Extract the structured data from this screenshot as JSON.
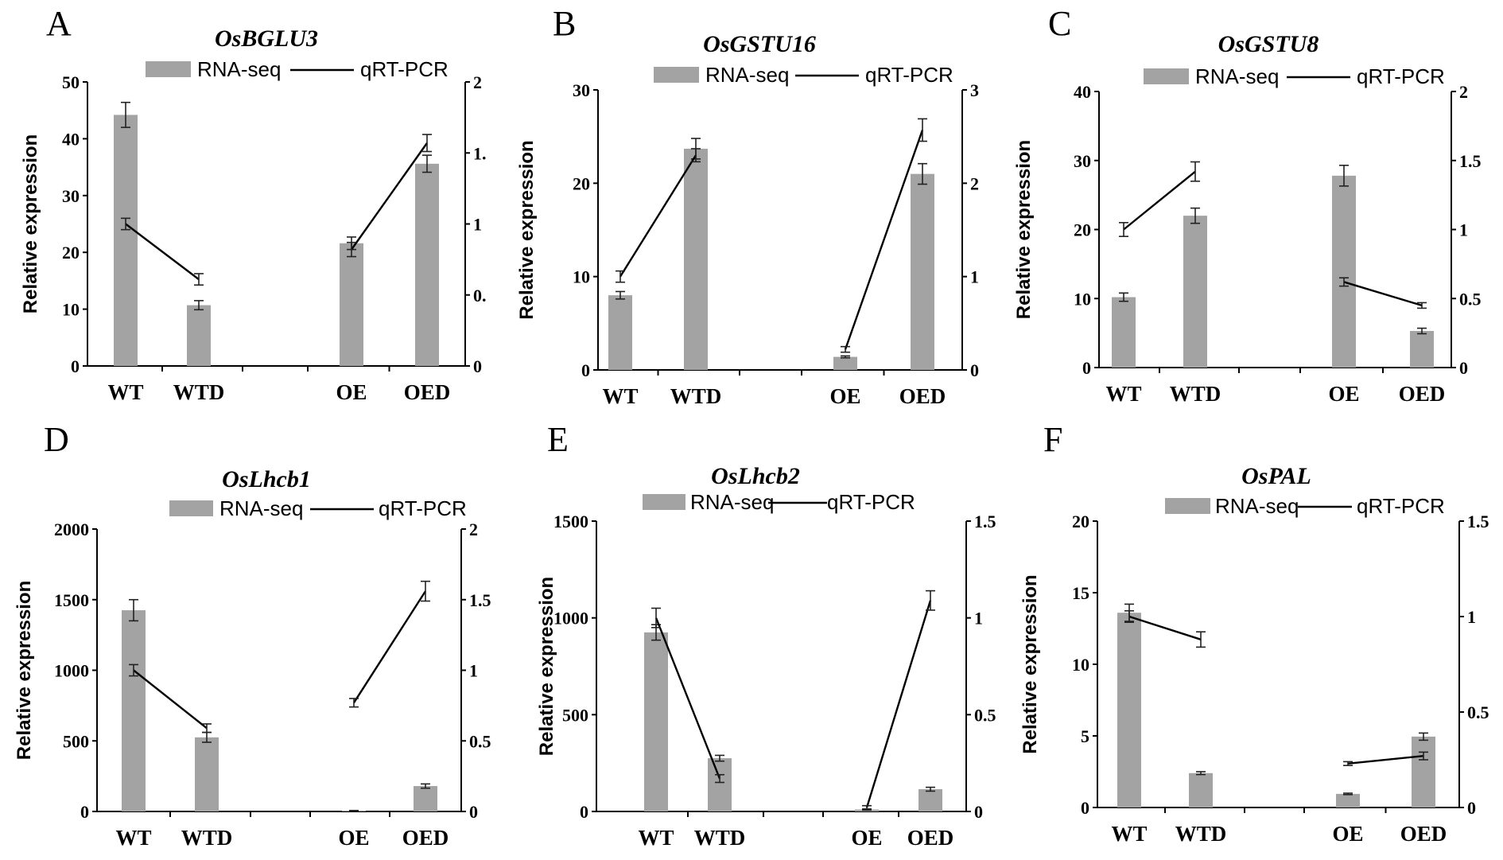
{
  "chart_data": [
    {
      "type": "bar",
      "panel": "A",
      "title": "OsBGLU3",
      "legend": [
        "RNA-seq",
        "qRT-PCR"
      ],
      "categories": [
        "WT",
        "WTD",
        "OE",
        "OED"
      ],
      "ylabel": "Relative expression",
      "ylim": [
        0,
        50
      ],
      "yticks": [
        "0",
        "10",
        "20",
        "30",
        "40",
        "50"
      ],
      "y2lim": [
        0,
        2
      ],
      "y2ticks": [
        "0",
        "0.",
        "1",
        "1.",
        "2"
      ],
      "series": [
        {
          "name": "RNA-seq",
          "type": "bar",
          "axis": "left",
          "values": [
            44.2,
            10.7,
            21.6,
            35.6
          ],
          "errors": [
            2.2,
            0.8,
            1.1,
            1.5
          ],
          "error_style": "both"
        },
        {
          "name": "qRT-PCR",
          "type": "line",
          "axis": "right",
          "values": [
            1.0,
            0.61,
            0.82,
            1.57
          ],
          "errors": [
            0.04,
            0.04,
            0.05,
            0.06
          ],
          "error_style": "both",
          "segments": [
            [
              0,
              1
            ],
            [
              2,
              3
            ]
          ]
        }
      ]
    },
    {
      "type": "bar",
      "panel": "B",
      "title": "OsGSTU16",
      "legend": [
        "RNA-seq",
        "qRT-PCR"
      ],
      "categories": [
        "WT",
        "WTD",
        "OE",
        "OED"
      ],
      "ylabel": "Relative expression",
      "ylim": [
        0,
        30
      ],
      "yticks": [
        "0",
        "10",
        "20",
        "30"
      ],
      "y2lim": [
        0,
        3
      ],
      "y2ticks": [
        "0",
        "1",
        "2",
        "3"
      ],
      "series": [
        {
          "name": "RNA-seq",
          "type": "bar",
          "axis": "left",
          "values": [
            8.0,
            23.7,
            1.4,
            21.0
          ],
          "errors": [
            0.4,
            1.1,
            0.1,
            1.1
          ],
          "error_style": "both"
        },
        {
          "name": "qRT-PCR",
          "type": "line",
          "axis": "right",
          "values": [
            1.0,
            2.3,
            0.22,
            2.57
          ],
          "errors": [
            0.06,
            0.07,
            0.03,
            0.12
          ],
          "error_style": "both",
          "segments": [
            [
              0,
              1
            ],
            [
              2,
              3
            ]
          ]
        }
      ]
    },
    {
      "type": "bar",
      "panel": "C",
      "title": "OsGSTU8",
      "legend": [
        "RNA-seq",
        "qRT-PCR"
      ],
      "categories": [
        "WT",
        "WTD",
        "OE",
        "OED"
      ],
      "ylabel": "Relative expression",
      "ylim": [
        0,
        40
      ],
      "yticks": [
        "0",
        "10",
        "20",
        "30",
        "40"
      ],
      "y2lim": [
        0,
        2
      ],
      "y2ticks": [
        "0",
        "0.5",
        "1",
        "1.5",
        "2"
      ],
      "series": [
        {
          "name": "RNA-seq",
          "type": "bar",
          "axis": "left",
          "values": [
            10.2,
            22.0,
            27.8,
            5.3
          ],
          "errors": [
            0.6,
            1.1,
            1.5,
            0.4
          ],
          "error_style": "both"
        },
        {
          "name": "qRT-PCR",
          "type": "line",
          "axis": "right",
          "values": [
            1.0,
            1.42,
            0.62,
            0.45
          ],
          "errors": [
            0.05,
            0.07,
            0.03,
            0.02
          ],
          "error_style": "both",
          "segments": [
            [
              0,
              1
            ],
            [
              2,
              3
            ]
          ]
        }
      ]
    },
    {
      "type": "bar",
      "panel": "D",
      "title": "OsLhcb1",
      "legend": [
        "RNA-seq",
        "qRT-PCR"
      ],
      "categories": [
        "WT",
        "WTD",
        "OE",
        "OED"
      ],
      "ylabel": "Relative expression",
      "ylim": [
        0,
        2000
      ],
      "yticks": [
        "0",
        "500",
        "1000",
        "1500",
        "2000"
      ],
      "y2lim": [
        0,
        2
      ],
      "y2ticks": [
        "0",
        "0.5",
        "1",
        "1.5",
        "2"
      ],
      "series": [
        {
          "name": "RNA-seq",
          "type": "bar",
          "axis": "left",
          "values": [
            1425,
            525,
            5,
            180
          ],
          "errors": [
            75,
            35,
            2,
            15
          ],
          "error_style": "both"
        },
        {
          "name": "qRT-PCR",
          "type": "line",
          "axis": "right",
          "values": [
            1.0,
            0.59,
            0.77,
            1.56
          ],
          "errors": [
            0.04,
            0.03,
            0.03,
            0.07
          ],
          "error_style": "both",
          "segments": [
            [
              0,
              1
            ],
            [
              2,
              3
            ]
          ]
        }
      ]
    },
    {
      "type": "bar",
      "panel": "E",
      "title": "OsLhcb2",
      "legend": [
        "RNA-seq",
        "qRT-PCR"
      ],
      "categories": [
        "WT",
        "WTD",
        "OE",
        "OED"
      ],
      "ylabel": "Relative expression",
      "ylim": [
        0,
        1500
      ],
      "yticks": [
        "0",
        "500",
        "1000",
        "1500"
      ],
      "y2lim": [
        0,
        1.5
      ],
      "y2ticks": [
        "0",
        "0.5",
        "1",
        "1.5"
      ],
      "series": [
        {
          "name": "RNA-seq",
          "type": "bar",
          "axis": "left",
          "values": [
            925,
            275,
            10,
            115
          ],
          "errors": [
            40,
            15,
            3,
            10
          ],
          "error_style": "both"
        },
        {
          "name": "qRT-PCR",
          "type": "line",
          "axis": "right",
          "values": [
            1.0,
            0.17,
            0.02,
            1.09
          ],
          "errors": [
            0.05,
            0.02,
            0.01,
            0.05
          ],
          "error_style": "both",
          "segments": [
            [
              0,
              1
            ],
            [
              2,
              3
            ]
          ]
        }
      ]
    },
    {
      "type": "bar",
      "panel": "F",
      "title": "OsPAL",
      "legend": [
        "RNA-seq",
        "qRT-PCR"
      ],
      "categories": [
        "WT",
        "WTD",
        "OE",
        "OED"
      ],
      "ylabel": "Relative expression",
      "ylim": [
        0,
        20
      ],
      "yticks": [
        "0",
        "5",
        "10",
        "15",
        "20"
      ],
      "y2lim": [
        0,
        1.5
      ],
      "y2ticks": [
        "0",
        "0.5",
        "1",
        "1.5"
      ],
      "series": [
        {
          "name": "RNA-seq",
          "type": "bar",
          "axis": "left",
          "values": [
            13.6,
            2.4,
            0.95,
            4.95
          ],
          "errors": [
            0.6,
            0.1,
            0.05,
            0.25
          ],
          "error_style": "both"
        },
        {
          "name": "qRT-PCR",
          "type": "line",
          "axis": "right",
          "values": [
            1.0,
            0.88,
            0.23,
            0.27
          ],
          "errors": [
            0.03,
            0.04,
            0.01,
            0.02
          ],
          "error_style": "both",
          "segments": [
            [
              0,
              1
            ],
            [
              2,
              3
            ]
          ]
        }
      ]
    }
  ]
}
